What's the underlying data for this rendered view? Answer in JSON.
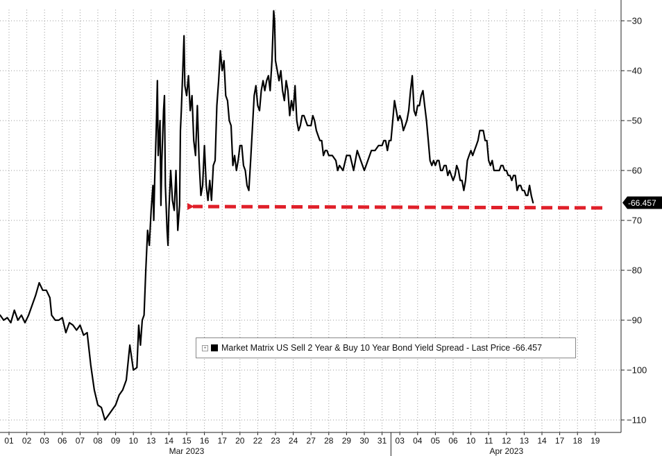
{
  "legend": {
    "text": "Market Matrix US Sell 2 Year & Buy 10 Year Bond Yield Spread - Last Price -66.457",
    "expand_glyph": "+",
    "series_color": "#000000"
  },
  "last_price_label": "-66.457",
  "annotation": {
    "type": "dashed-arrow",
    "color": "#e0202a",
    "y_value": -67.5,
    "from_x_index": 0,
    "to_x_index": 29
  },
  "chart_data": {
    "type": "line",
    "title": "",
    "xlabel": "",
    "ylabel": "",
    "ylim": [
      -112,
      -26
    ],
    "yticks": [
      -30,
      -40,
      -50,
      -60,
      -70,
      -80,
      -90,
      -100,
      -110
    ],
    "grid": true,
    "x_ticks": [
      {
        "label": "01",
        "i": 0
      },
      {
        "label": "02",
        "i": 1
      },
      {
        "label": "03",
        "i": 2
      },
      {
        "label": "06",
        "i": 3
      },
      {
        "label": "07",
        "i": 4
      },
      {
        "label": "08",
        "i": 5
      },
      {
        "label": "09",
        "i": 6
      },
      {
        "label": "10",
        "i": 7
      },
      {
        "label": "13",
        "i": 8
      },
      {
        "label": "14",
        "i": 9
      },
      {
        "label": "15",
        "i": 10
      },
      {
        "label": "16",
        "i": 11
      },
      {
        "label": "17",
        "i": 12
      },
      {
        "label": "20",
        "i": 13
      },
      {
        "label": "22",
        "i": 14
      },
      {
        "label": "23",
        "i": 15
      },
      {
        "label": "24",
        "i": 16
      },
      {
        "label": "27",
        "i": 17
      },
      {
        "label": "28",
        "i": 18
      },
      {
        "label": "29",
        "i": 19
      },
      {
        "label": "30",
        "i": 20
      },
      {
        "label": "31",
        "i": 21
      },
      {
        "label": "03",
        "i": 22
      },
      {
        "label": "04",
        "i": 23
      },
      {
        "label": "05",
        "i": 24
      },
      {
        "label": "06",
        "i": 25
      },
      {
        "label": "10",
        "i": 26
      },
      {
        "label": "11",
        "i": 27
      },
      {
        "label": "12",
        "i": 28
      },
      {
        "label": "13",
        "i": 29
      },
      {
        "label": "14",
        "i": 30
      },
      {
        "label": "17",
        "i": 31
      },
      {
        "label": "18",
        "i": 32
      },
      {
        "label": "19",
        "i": 33
      }
    ],
    "month_labels": [
      {
        "label": "Mar 2023",
        "i": 10
      },
      {
        "label": "Apr 2023",
        "i": 28
      }
    ],
    "month_divider_i": 21.5,
    "series": [
      {
        "color": "#000000",
        "points": [
          [
            -0.5,
            -89
          ],
          [
            -0.3,
            -90
          ],
          [
            -0.1,
            -89.5
          ],
          [
            0.1,
            -90.5
          ],
          [
            0.3,
            -88
          ],
          [
            0.5,
            -90
          ],
          [
            0.7,
            -89
          ],
          [
            0.9,
            -90.5
          ],
          [
            1.1,
            -89
          ],
          [
            1.3,
            -87
          ],
          [
            1.5,
            -85
          ],
          [
            1.7,
            -82.5
          ],
          [
            1.9,
            -84
          ],
          [
            2.1,
            -84
          ],
          [
            2.3,
            -85.5
          ],
          [
            2.4,
            -89
          ],
          [
            2.6,
            -90
          ],
          [
            2.8,
            -90
          ],
          [
            3.0,
            -89.5
          ],
          [
            3.2,
            -92.5
          ],
          [
            3.4,
            -90.5
          ],
          [
            3.6,
            -91
          ],
          [
            3.8,
            -92
          ],
          [
            4.0,
            -91
          ],
          [
            4.2,
            -93
          ],
          [
            4.4,
            -92.5
          ],
          [
            4.6,
            -99
          ],
          [
            4.8,
            -104
          ],
          [
            5.0,
            -107
          ],
          [
            5.2,
            -107.5
          ],
          [
            5.4,
            -110
          ],
          [
            5.6,
            -109
          ],
          [
            5.8,
            -108
          ],
          [
            6.0,
            -107
          ],
          [
            6.2,
            -105
          ],
          [
            6.4,
            -104
          ],
          [
            6.6,
            -102
          ],
          [
            6.8,
            -95
          ],
          [
            7.0,
            -100
          ],
          [
            7.2,
            -99.5
          ],
          [
            7.3,
            -91
          ],
          [
            7.4,
            -95
          ],
          [
            7.5,
            -90
          ],
          [
            7.6,
            -89
          ],
          [
            7.7,
            -80
          ],
          [
            7.8,
            -72
          ],
          [
            7.9,
            -75
          ],
          [
            8.0,
            -68
          ],
          [
            8.1,
            -63
          ],
          [
            8.15,
            -70
          ],
          [
            8.2,
            -62
          ],
          [
            8.3,
            -50
          ],
          [
            8.35,
            -42
          ],
          [
            8.4,
            -57
          ],
          [
            8.5,
            -50
          ],
          [
            8.55,
            -67
          ],
          [
            8.6,
            -58
          ],
          [
            8.7,
            -48
          ],
          [
            8.75,
            -45
          ],
          [
            8.8,
            -63
          ],
          [
            8.9,
            -72
          ],
          [
            8.95,
            -75
          ],
          [
            9.0,
            -68
          ],
          [
            9.1,
            -60
          ],
          [
            9.2,
            -66
          ],
          [
            9.3,
            -68
          ],
          [
            9.4,
            -60
          ],
          [
            9.5,
            -72
          ],
          [
            9.6,
            -67
          ],
          [
            9.65,
            -52
          ],
          [
            9.7,
            -48
          ],
          [
            9.8,
            -38
          ],
          [
            9.85,
            -33
          ],
          [
            9.9,
            -43
          ],
          [
            10.0,
            -45
          ],
          [
            10.1,
            -41
          ],
          [
            10.2,
            -48
          ],
          [
            10.3,
            -45
          ],
          [
            10.4,
            -54
          ],
          [
            10.5,
            -57
          ],
          [
            10.6,
            -47
          ],
          [
            10.7,
            -58
          ],
          [
            10.8,
            -65
          ],
          [
            10.9,
            -63
          ],
          [
            11.0,
            -55
          ],
          [
            11.1,
            -63
          ],
          [
            11.2,
            -66
          ],
          [
            11.3,
            -62
          ],
          [
            11.4,
            -66
          ],
          [
            11.5,
            -59
          ],
          [
            11.6,
            -58
          ],
          [
            11.7,
            -47
          ],
          [
            11.8,
            -42
          ],
          [
            11.9,
            -36
          ],
          [
            12.0,
            -40
          ],
          [
            12.1,
            -38
          ],
          [
            12.2,
            -45
          ],
          [
            12.3,
            -46
          ],
          [
            12.4,
            -50
          ],
          [
            12.5,
            -51
          ],
          [
            12.6,
            -59
          ],
          [
            12.7,
            -57
          ],
          [
            12.8,
            -60
          ],
          [
            12.9,
            -58
          ],
          [
            13.0,
            -55
          ],
          [
            13.1,
            -55
          ],
          [
            13.2,
            -59
          ],
          [
            13.3,
            -60
          ],
          [
            13.4,
            -63
          ],
          [
            13.5,
            -64
          ],
          [
            13.6,
            -58
          ],
          [
            13.8,
            -45
          ],
          [
            13.9,
            -43
          ],
          [
            14.0,
            -47
          ],
          [
            14.1,
            -48
          ],
          [
            14.2,
            -44
          ],
          [
            14.3,
            -42
          ],
          [
            14.4,
            -44
          ],
          [
            14.5,
            -42
          ],
          [
            14.6,
            -41
          ],
          [
            14.7,
            -44
          ],
          [
            14.8,
            -38
          ],
          [
            14.85,
            -33
          ],
          [
            14.9,
            -28
          ],
          [
            14.95,
            -30
          ],
          [
            15.0,
            -38
          ],
          [
            15.1,
            -40
          ],
          [
            15.2,
            -42
          ],
          [
            15.3,
            -40
          ],
          [
            15.4,
            -44
          ],
          [
            15.5,
            -46
          ],
          [
            15.6,
            -42
          ],
          [
            15.7,
            -44
          ],
          [
            15.8,
            -49
          ],
          [
            15.9,
            -46
          ],
          [
            16.0,
            -48
          ],
          [
            16.1,
            -43
          ],
          [
            16.2,
            -50
          ],
          [
            16.3,
            -52
          ],
          [
            16.4,
            -51
          ],
          [
            16.5,
            -49
          ],
          [
            16.6,
            -49
          ],
          [
            16.7,
            -50
          ],
          [
            16.8,
            -51
          ],
          [
            16.9,
            -51
          ],
          [
            17.0,
            -51
          ],
          [
            17.1,
            -49
          ],
          [
            17.2,
            -50
          ],
          [
            17.3,
            -52
          ],
          [
            17.4,
            -53
          ],
          [
            17.5,
            -54
          ],
          [
            17.6,
            -54
          ],
          [
            17.7,
            -57
          ],
          [
            17.8,
            -56
          ],
          [
            17.9,
            -56
          ],
          [
            18.0,
            -57
          ],
          [
            18.2,
            -57
          ],
          [
            18.4,
            -58
          ],
          [
            18.5,
            -60
          ],
          [
            18.6,
            -59
          ],
          [
            18.8,
            -60
          ],
          [
            19.0,
            -57
          ],
          [
            19.2,
            -57
          ],
          [
            19.4,
            -60
          ],
          [
            19.6,
            -56
          ],
          [
            19.8,
            -58
          ],
          [
            20.0,
            -60
          ],
          [
            20.2,
            -58
          ],
          [
            20.4,
            -56
          ],
          [
            20.6,
            -56
          ],
          [
            20.8,
            -55
          ],
          [
            21.0,
            -55
          ],
          [
            21.1,
            -54
          ],
          [
            21.2,
            -54
          ],
          [
            21.3,
            -56
          ],
          [
            21.4,
            -54
          ],
          [
            21.5,
            -54
          ],
          [
            21.6,
            -50
          ],
          [
            21.7,
            -46
          ],
          [
            21.8,
            -48
          ],
          [
            21.9,
            -50
          ],
          [
            22.0,
            -49
          ],
          [
            22.1,
            -50
          ],
          [
            22.2,
            -52
          ],
          [
            22.3,
            -51
          ],
          [
            22.4,
            -50
          ],
          [
            22.5,
            -48
          ],
          [
            22.6,
            -44
          ],
          [
            22.7,
            -41
          ],
          [
            22.8,
            -48
          ],
          [
            22.9,
            -49
          ],
          [
            23.0,
            -47
          ],
          [
            23.1,
            -47
          ],
          [
            23.2,
            -45
          ],
          [
            23.3,
            -44
          ],
          [
            23.4,
            -47
          ],
          [
            23.5,
            -50
          ],
          [
            23.6,
            -54
          ],
          [
            23.7,
            -58
          ],
          [
            23.8,
            -59
          ],
          [
            23.9,
            -58
          ],
          [
            24.0,
            -59
          ],
          [
            24.1,
            -58
          ],
          [
            24.2,
            -58
          ],
          [
            24.3,
            -60
          ],
          [
            24.4,
            -60
          ],
          [
            24.5,
            -59
          ],
          [
            24.6,
            -59
          ],
          [
            24.7,
            -61
          ],
          [
            24.8,
            -60
          ],
          [
            24.9,
            -61
          ],
          [
            25.0,
            -62
          ],
          [
            25.1,
            -61
          ],
          [
            25.2,
            -59
          ],
          [
            25.3,
            -60
          ],
          [
            25.4,
            -62
          ],
          [
            25.5,
            -62
          ],
          [
            25.6,
            -64
          ],
          [
            25.7,
            -62
          ],
          [
            25.8,
            -58
          ],
          [
            25.9,
            -57
          ],
          [
            26.0,
            -56
          ],
          [
            26.1,
            -57
          ],
          [
            26.2,
            -56
          ],
          [
            26.3,
            -55
          ],
          [
            26.4,
            -54
          ],
          [
            26.5,
            -52
          ],
          [
            26.6,
            -52
          ],
          [
            26.7,
            -52
          ],
          [
            26.8,
            -54
          ],
          [
            26.9,
            -54
          ],
          [
            27.0,
            -58
          ],
          [
            27.1,
            -59
          ],
          [
            27.2,
            -58
          ],
          [
            27.3,
            -60
          ],
          [
            27.4,
            -60
          ],
          [
            27.5,
            -60
          ],
          [
            27.6,
            -60
          ],
          [
            27.7,
            -59
          ],
          [
            27.8,
            -59
          ],
          [
            27.9,
            -60
          ],
          [
            28.0,
            -60
          ],
          [
            28.1,
            -61
          ],
          [
            28.2,
            -61
          ],
          [
            28.3,
            -62
          ],
          [
            28.4,
            -61
          ],
          [
            28.5,
            -61
          ],
          [
            28.6,
            -64
          ],
          [
            28.7,
            -63
          ],
          [
            28.8,
            -63
          ],
          [
            28.9,
            -64
          ],
          [
            29.0,
            -64
          ],
          [
            29.1,
            -65
          ],
          [
            29.2,
            -65
          ],
          [
            29.3,
            -63
          ],
          [
            29.4,
            -65
          ],
          [
            29.5,
            -66.457
          ]
        ]
      }
    ]
  }
}
